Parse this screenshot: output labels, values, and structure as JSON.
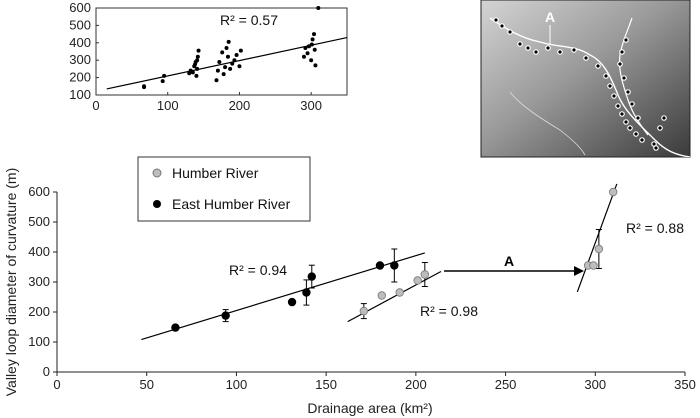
{
  "chart_data": [
    {
      "type": "scatter",
      "panel": "inset",
      "xlim": [
        0,
        350
      ],
      "ylim": [
        100,
        600
      ],
      "xticks": [
        "0",
        "100",
        "200",
        "300"
      ],
      "yticks": [
        "100",
        "200",
        "300",
        "400",
        "500",
        "600"
      ],
      "annotation": "R² = 0.57",
      "points": [
        {
          "x": 67,
          "y": 145
        },
        {
          "x": 67,
          "y": 150
        },
        {
          "x": 93,
          "y": 180
        },
        {
          "x": 95,
          "y": 210
        },
        {
          "x": 130,
          "y": 225
        },
        {
          "x": 132,
          "y": 240
        },
        {
          "x": 135,
          "y": 230
        },
        {
          "x": 137,
          "y": 265
        },
        {
          "x": 138,
          "y": 275
        },
        {
          "x": 139,
          "y": 290
        },
        {
          "x": 140,
          "y": 210
        },
        {
          "x": 141,
          "y": 250
        },
        {
          "x": 141,
          "y": 300
        },
        {
          "x": 142,
          "y": 320
        },
        {
          "x": 143,
          "y": 355
        },
        {
          "x": 168,
          "y": 185
        },
        {
          "x": 170,
          "y": 240
        },
        {
          "x": 172,
          "y": 290
        },
        {
          "x": 176,
          "y": 345
        },
        {
          "x": 178,
          "y": 220
        },
        {
          "x": 180,
          "y": 260
        },
        {
          "x": 182,
          "y": 370
        },
        {
          "x": 184,
          "y": 320
        },
        {
          "x": 185,
          "y": 405
        },
        {
          "x": 187,
          "y": 250
        },
        {
          "x": 190,
          "y": 280
        },
        {
          "x": 193,
          "y": 300
        },
        {
          "x": 196,
          "y": 330
        },
        {
          "x": 200,
          "y": 265
        },
        {
          "x": 202,
          "y": 355
        },
        {
          "x": 290,
          "y": 320
        },
        {
          "x": 292,
          "y": 370
        },
        {
          "x": 295,
          "y": 340
        },
        {
          "x": 297,
          "y": 380
        },
        {
          "x": 300,
          "y": 300
        },
        {
          "x": 301,
          "y": 390
        },
        {
          "x": 302,
          "y": 420
        },
        {
          "x": 304,
          "y": 450
        },
        {
          "x": 305,
          "y": 360
        },
        {
          "x": 306,
          "y": 270
        },
        {
          "x": 310,
          "y": 600
        }
      ],
      "fit": [
        [
          15,
          135
        ],
        [
          350,
          430
        ]
      ]
    },
    {
      "type": "scatter",
      "panel": "main",
      "xlabel": "Drainage area (km²)",
      "ylabel": "Valley loop diameter of curvature (m)",
      "xlim": [
        0,
        350
      ],
      "ylim": [
        0,
        600
      ],
      "xticks": [
        "0",
        "50",
        "100",
        "150",
        "200",
        "250",
        "300",
        "350"
      ],
      "yticks": [
        "0",
        "100",
        "200",
        "300",
        "400",
        "500",
        "600"
      ],
      "legend_position": "top-left",
      "series": [
        {
          "name": "East Humber River",
          "color": "#000000",
          "points": [
            {
              "x": 66,
              "y": 148,
              "err": 0
            },
            {
              "x": 94,
              "y": 188,
              "err": 20
            },
            {
              "x": 131,
              "y": 233,
              "err": 0
            },
            {
              "x": 139,
              "y": 265,
              "err": 42
            },
            {
              "x": 142,
              "y": 318,
              "err": 38
            },
            {
              "x": 180,
              "y": 355,
              "err": 0
            },
            {
              "x": 188,
              "y": 355,
              "err": 55
            }
          ],
          "fit": [
            [
              47,
              108
            ],
            [
              205,
              397
            ]
          ],
          "r2_label": "R² = 0.94"
        },
        {
          "name": "Humber River",
          "color": "#bdbdbd",
          "points": [
            {
              "x": 171,
              "y": 203,
              "err": 25
            },
            {
              "x": 181,
              "y": 255,
              "err": 0
            },
            {
              "x": 191,
              "y": 265,
              "err": 0
            },
            {
              "x": 201,
              "y": 305,
              "err": 0
            },
            {
              "x": 205,
              "y": 325,
              "err": 40
            },
            {
              "x": 296,
              "y": 355,
              "err": 0
            },
            {
              "x": 299,
              "y": 355,
              "err": 0
            },
            {
              "x": 302,
              "y": 410,
              "err": 65
            },
            {
              "x": 310,
              "y": 600,
              "err": 0
            }
          ],
          "fits": [
            {
              "line": [
                [
                  162,
                  168
                ],
                [
                  214,
                  335
                ]
              ],
              "r2_label": "R² = 0.98"
            },
            {
              "line": [
                [
                  290,
                  267
                ],
                [
                  312,
                  627
                ]
              ],
              "r2_label": "R² = 0.88"
            }
          ]
        }
      ],
      "arrow_label": "A"
    }
  ],
  "map": {
    "label": "A",
    "colors": {
      "bg_light": "#d0d0d0",
      "bg_dark": "#3d3d3d"
    }
  }
}
